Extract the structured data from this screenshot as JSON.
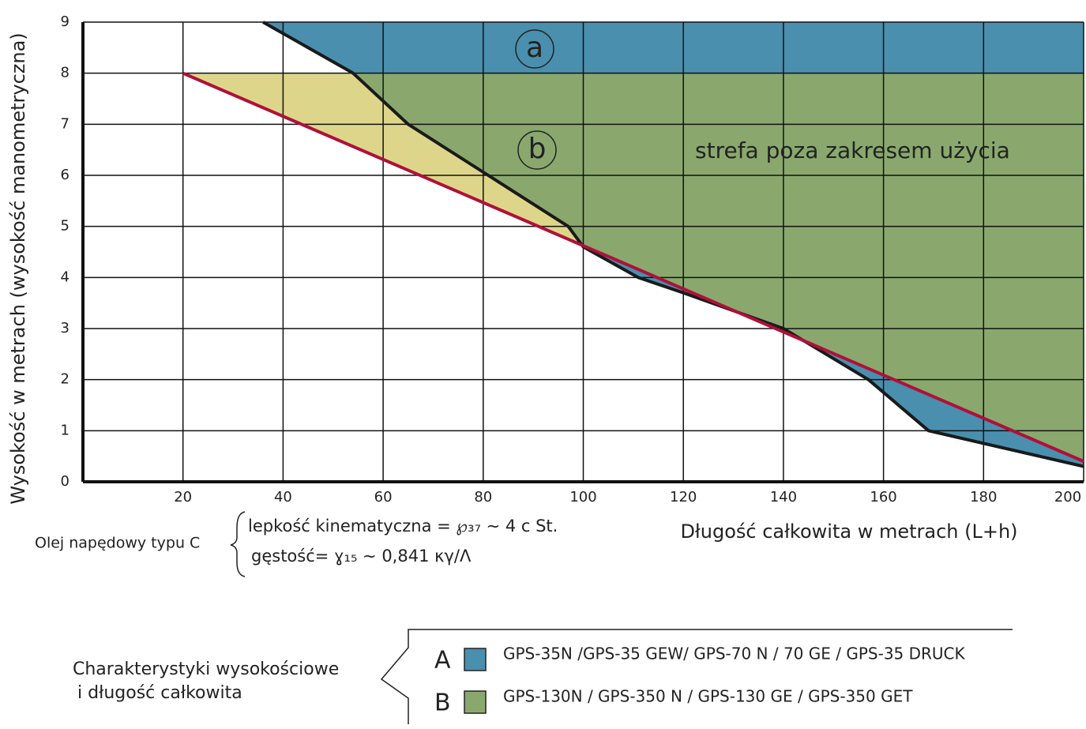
{
  "chart_data": {
    "type": "line",
    "y_label": "Wysokość w metrach (wysokość manometryczna)",
    "x_label": "Długość całkowita w metrach (L+h)",
    "xlim": [
      0,
      200
    ],
    "ylim": [
      0,
      9
    ],
    "xticks": [
      20,
      40,
      60,
      80,
      100,
      120,
      140,
      160,
      180,
      200
    ],
    "yticks": [
      0,
      1,
      2,
      3,
      4,
      5,
      6,
      7,
      8,
      9
    ],
    "grid": true,
    "series": [
      {
        "color": "#1a1a1a",
        "x": [
          36,
          54,
          65,
          81,
          97,
          100,
          111,
          120,
          140,
          157,
          169,
          200
        ],
        "values": [
          9,
          8,
          7,
          6,
          5,
          4.6,
          4,
          3.7,
          3,
          2,
          1,
          0.3
        ]
      },
      {
        "color": "#b0103a",
        "x": [
          20,
          200
        ],
        "values": [
          8,
          0.4
        ]
      }
    ],
    "between_color": "#ddd68a",
    "annotations": [
      "a",
      "b",
      "strefa poza zakresem użycia"
    ],
    "note": {
      "title": "Olej napędowy typu C",
      "lines": [
        "lepkość kinematyczna = ℘₃₇ ∼ 4 c St.",
        "gęstość= ɣ₁₅ ∼ 0,841 κγ/Λ"
      ]
    },
    "legend": {
      "title": [
        "Charakterystyki wysokościowe",
        "i długość całkowita"
      ],
      "items": [
        {
          "key": "A",
          "label": "GPS-35N /GPS-35 GEW/ GPS-70 N / 70 GE / GPS-35 DRUCK",
          "color": "#4a8fae"
        },
        {
          "key": "B",
          "label": "GPS-130N / GPS-350 N / GPS-130 GE / GPS-350 GET",
          "color": "#8aa86e"
        }
      ]
    }
  }
}
